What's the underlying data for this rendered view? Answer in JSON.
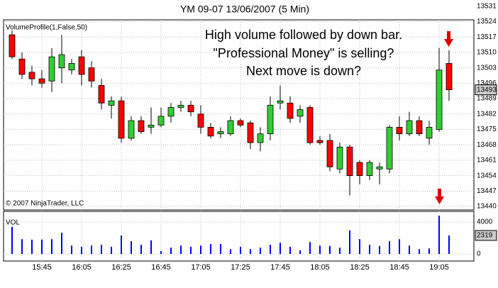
{
  "chart_data": {
    "type": "candlestick",
    "title": "YM 09-07  13/06/2007  (5 Min)",
    "indicator_label": "VolumeProfile(1,False,50)",
    "copyright": "© 2007 NinjaTrader, LLC",
    "volume_label": "VOL",
    "annotation": [
      "High volume followed by down bar.",
      "\"Professional Money\" is selling?",
      "Next move is down?"
    ],
    "categories": [
      null,
      null,
      null,
      "15:45",
      null,
      null,
      null,
      "16:05",
      null,
      null,
      null,
      "16:25",
      null,
      null,
      null,
      "16:45",
      null,
      null,
      null,
      "17:05",
      null,
      null,
      null,
      "17:25",
      null,
      null,
      null,
      "17:45",
      null,
      null,
      null,
      "18:05",
      null,
      null,
      null,
      "18:25",
      null,
      null,
      null,
      "18:45",
      null,
      null,
      null,
      "19:05",
      null
    ],
    "open": [
      13518,
      13507,
      13501,
      13498,
      13497,
      13503,
      13502,
      13508,
      13503,
      13495,
      13486,
      13488,
      13471,
      13479,
      13476,
      13477,
      13481,
      13485,
      13486,
      13482,
      13476,
      13473,
      13473,
      13479,
      13478,
      13469,
      13473,
      13487,
      13487,
      13481,
      13485,
      13470,
      13470,
      13457,
      13467,
      13460,
      13454,
      13457,
      13457,
      13476,
      13473,
      13479,
      13471,
      13475,
      13505
    ],
    "high": [
      13520,
      13510,
      13504,
      13502,
      13512,
      13518,
      13507,
      13511,
      13506,
      13498,
      13490,
      13490,
      13481,
      13481,
      13485,
      13485,
      13487,
      13488,
      13488,
      13486,
      13478,
      13476,
      13481,
      13480,
      13479,
      13476,
      13490,
      13495,
      13490,
      13486,
      13486,
      13472,
      13473,
      13469,
      13468,
      13461,
      13461,
      13460,
      13477,
      13481,
      13483,
      13481,
      13479,
      13512,
      13511
    ],
    "low": [
      13507,
      13498,
      13495,
      13494,
      13492,
      13496,
      13500,
      13495,
      13494,
      13484,
      13480,
      13469,
      13470,
      13473,
      13473,
      13476,
      13478,
      13483,
      13481,
      13473,
      13471,
      13471,
      13472,
      13476,
      13466,
      13465,
      13470,
      13484,
      13478,
      13478,
      13468,
      13468,
      13456,
      13455,
      13445,
      13450,
      13452,
      13450,
      13455,
      13470,
      13472,
      13472,
      13468,
      13474,
      13488
    ],
    "close": [
      13508,
      13500,
      13498,
      13496,
      13508,
      13509,
      13505,
      13500,
      13497,
      13487,
      13488,
      13471,
      13479,
      13474,
      13477,
      13481,
      13485,
      13486,
      13483,
      13476,
      13472,
      13474,
      13479,
      13477,
      13469,
      13473,
      13486,
      13488,
      13480,
      13484,
      13469,
      13469,
      13458,
      13467,
      13454,
      13454,
      13460,
      13458,
      13476,
      13473,
      13479,
      13473,
      13476,
      13502,
      13493
    ],
    "volume": [
      3400,
      1850,
      1800,
      1800,
      1850,
      2650,
      1050,
      900,
      1050,
      1150,
      900,
      2300,
      1600,
      1150,
      1700,
      350,
      800,
      1050,
      900,
      1050,
      1250,
      1250,
      600,
      900,
      600,
      800,
      1150,
      1400,
      900,
      450,
      1500,
      1050,
      1000,
      800,
      2950,
      1850,
      1150,
      1000,
      1600,
      1850,
      1050,
      600,
      700,
      4800,
      2319
    ],
    "up_color": "#32cd32",
    "down_color": "#ff0000",
    "volume_color": "#0000ff",
    "ylim": [
      13438.4,
      13524.8
    ],
    "yticks": [
      13440,
      13447,
      13454,
      13461,
      13468,
      13475,
      13482,
      13489,
      13496,
      13503,
      13510,
      13517,
      13524,
      13531
    ],
    "vol_ylim": [
      0,
      5333
    ],
    "vol_yticks": [
      0,
      4000
    ],
    "grid": true
  }
}
